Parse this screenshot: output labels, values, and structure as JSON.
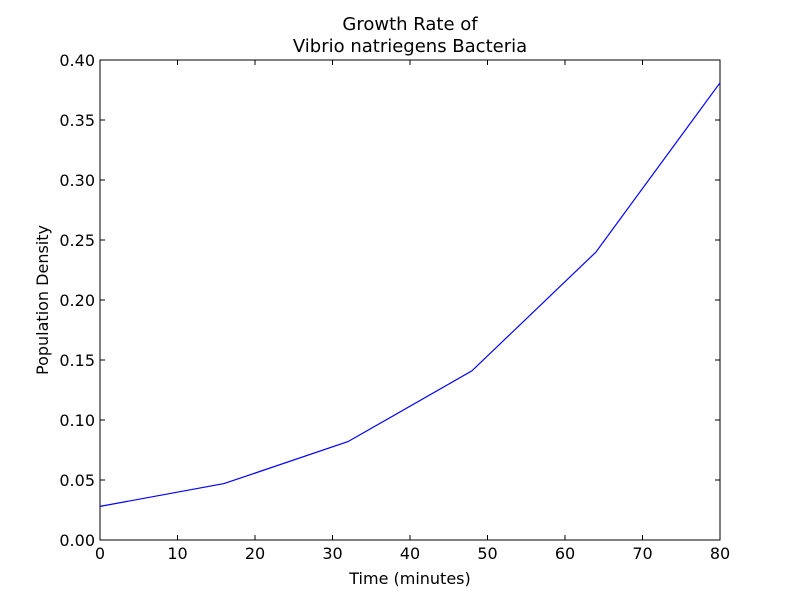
{
  "chart_data": {
    "type": "line",
    "title_lines": [
      "Growth Rate of",
      "Vibrio natriegens Bacteria"
    ],
    "xlabel": "Time (minutes)",
    "ylabel": "Population Density",
    "xlim": [
      0,
      80
    ],
    "ylim": [
      0,
      0.4
    ],
    "x_ticks": [
      0,
      10,
      20,
      30,
      40,
      50,
      60,
      70,
      80
    ],
    "x_tick_labels": [
      "0",
      "10",
      "20",
      "30",
      "40",
      "50",
      "60",
      "70",
      "80"
    ],
    "y_ticks": [
      0,
      0.05,
      0.1,
      0.15,
      0.2,
      0.25,
      0.3,
      0.35,
      0.4
    ],
    "y_tick_labels": [
      "0.00",
      "0.05",
      "0.10",
      "0.15",
      "0.20",
      "0.25",
      "0.30",
      "0.35",
      "0.40"
    ],
    "grid": false,
    "series": [
      {
        "color": "#0000ff",
        "x": [
          0,
          16,
          32,
          48,
          64,
          80
        ],
        "y": [
          0.028,
          0.047,
          0.082,
          0.141,
          0.24,
          0.381
        ]
      }
    ]
  }
}
